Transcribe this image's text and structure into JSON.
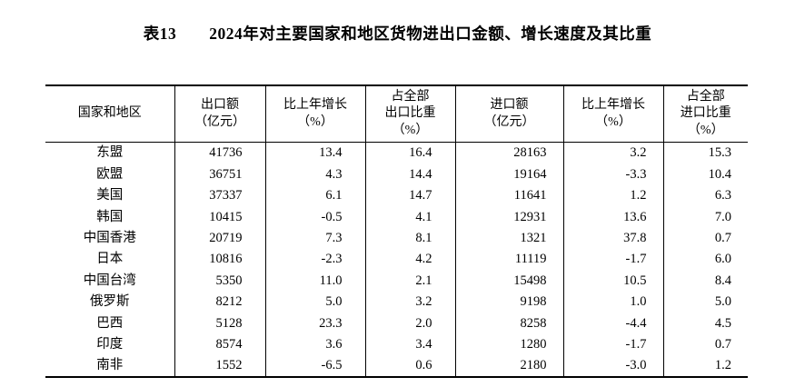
{
  "title": "表13　　2024年对主要国家和地区货物进出口金额、增长速度及其比重",
  "colors": {
    "text": "#000000",
    "background": "#ffffff",
    "border": "#000000"
  },
  "table": {
    "headers": [
      "国家和地区",
      "出口额\n（亿元）",
      "比上年增长\n（%）",
      "占全部\n出口比重\n（%）",
      "进口额\n（亿元）",
      "比上年增长\n（%）",
      "占全部\n进口比重\n（%）"
    ],
    "rows": [
      [
        "东盟",
        "41736",
        "13.4",
        "16.4",
        "28163",
        "3.2",
        "15.3"
      ],
      [
        "欧盟",
        "36751",
        "4.3",
        "14.4",
        "19164",
        "-3.3",
        "10.4"
      ],
      [
        "美国",
        "37337",
        "6.1",
        "14.7",
        "11641",
        "1.2",
        "6.3"
      ],
      [
        "韩国",
        "10415",
        "-0.5",
        "4.1",
        "12931",
        "13.6",
        "7.0"
      ],
      [
        "中国香港",
        "20719",
        "7.3",
        "8.1",
        "1321",
        "37.8",
        "0.7"
      ],
      [
        "日本",
        "10816",
        "-2.3",
        "4.2",
        "11119",
        "-1.7",
        "6.0"
      ],
      [
        "中国台湾",
        "5350",
        "11.0",
        "2.1",
        "15498",
        "10.5",
        "8.4"
      ],
      [
        "俄罗斯",
        "8212",
        "5.0",
        "3.2",
        "9198",
        "1.0",
        "5.0"
      ],
      [
        "巴西",
        "5128",
        "23.3",
        "2.0",
        "8258",
        "-4.4",
        "4.5"
      ],
      [
        "印度",
        "8574",
        "3.6",
        "3.4",
        "1280",
        "-1.7",
        "0.7"
      ],
      [
        "南非",
        "1552",
        "-6.5",
        "0.6",
        "2180",
        "-3.0",
        "1.2"
      ]
    ]
  }
}
